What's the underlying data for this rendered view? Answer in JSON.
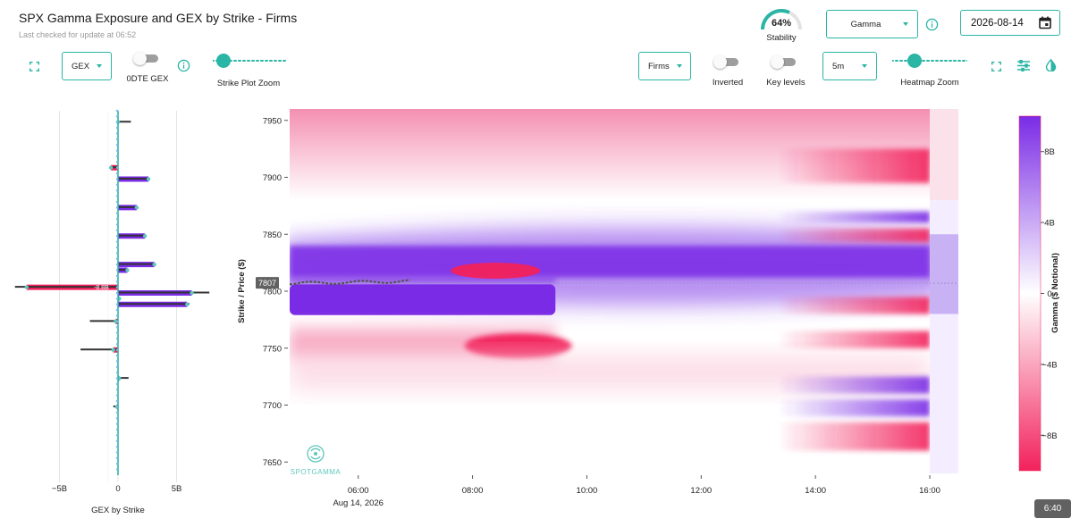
{
  "header": {
    "title": "SPX Gamma Exposure and GEX by Strike - Firms",
    "subtitle": "Last checked for update at 06:52"
  },
  "stability": {
    "value_label": "64%",
    "value": 64,
    "label": "Stability"
  },
  "metric_select": {
    "value": "Gamma"
  },
  "date_input": {
    "value": "2026-08-14"
  },
  "controls": {
    "gex_select": "GEX",
    "odte_label": "0DTE GEX",
    "strike_zoom_label": "Strike Plot Zoom",
    "strike_zoom_value": 0.06,
    "firms_select": "Firms",
    "inverted_label": "Inverted",
    "key_levels_label": "Key levels",
    "interval_select": "5m",
    "heatmap_zoom_label": "Heatmap Zoom",
    "heatmap_zoom_value": 0.25
  },
  "icons": {
    "expand": "expand-icon",
    "info": "info-icon",
    "calendar": "calendar-icon",
    "settings": "sliders-icon",
    "contrast": "contrast-icon"
  },
  "colors": {
    "accent": "#2ab5a5",
    "positive": "#7a2be6",
    "negative": "#f2215c",
    "spot_line": "#555555"
  },
  "chart_data": [
    {
      "type": "bar",
      "xlabel": "GEX by Strike",
      "x_ticks": [
        "−5B",
        "0",
        "5B"
      ],
      "x_tick_values": [
        -5,
        0,
        5
      ],
      "xlim": [
        -8,
        8
      ],
      "spot_label": "-8.8B",
      "strikes": [
        7950,
        7910,
        7900,
        7875,
        7850,
        7825,
        7820,
        7805,
        7800,
        7795,
        7790,
        7775,
        7750,
        7725,
        7700
      ],
      "values": [
        0,
        -0.6,
        2.6,
        1.6,
        2.3,
        3.1,
        0.8,
        -7.8,
        6.3,
        0.1,
        5.9,
        -0.2,
        -0.4,
        0.1,
        -0.1
      ],
      "firm_values": [
        1.1,
        -0.7,
        2.5,
        1.4,
        2.2,
        3.0,
        0.7,
        -8.8,
        7.8,
        0.2,
        6.1,
        -2.4,
        -3.2,
        0.9,
        -0.4
      ]
    },
    {
      "type": "heatmap",
      "ylabel": "Strike / Price ($)",
      "y_ticks": [
        "7950",
        "7900",
        "7850",
        "7800",
        "7750",
        "7700",
        "7650"
      ],
      "y_tick_values": [
        7950,
        7900,
        7850,
        7800,
        7750,
        7700,
        7650
      ],
      "ylim": [
        7640,
        7960
      ],
      "x_ticks": [
        "06:00",
        "08:00",
        "10:00",
        "12:00",
        "14:00",
        "16:00"
      ],
      "x_tick_values": [
        6,
        8,
        10,
        12,
        14,
        16
      ],
      "x_date_label": "Aug 14, 2026",
      "xlim": [
        4.8,
        16.5
      ],
      "spot_price": 7807,
      "spot_label": "7807",
      "colorbar_label": "Gamma ($ Notional)",
      "colorbar_ticks": [
        "8B",
        "4B",
        "0",
        "−4B",
        "−8B"
      ],
      "colorbar_tick_values": [
        8,
        4,
        0,
        -4,
        -8
      ],
      "colorbar_range": [
        -10,
        10
      ]
    }
  ],
  "watermark": {
    "text": "SPOTGAMMA"
  },
  "tooltip": {
    "text": "6:40"
  }
}
